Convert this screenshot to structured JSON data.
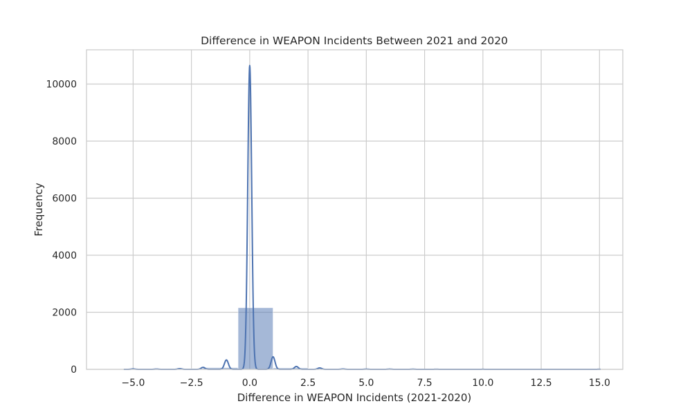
{
  "chart_data": {
    "type": "bar",
    "title": "Difference in WEAPON Incidents Between 2021 and 2020",
    "xlabel": "Difference in WEAPON Incidents (2021-2020)",
    "ylabel": "Frequency",
    "xlim": [
      -7.0,
      16.0
    ],
    "ylim": [
      0,
      11200
    ],
    "x_ticks": [
      -5.0,
      -2.5,
      0.0,
      2.5,
      5.0,
      7.5,
      10.0,
      12.5,
      15.0
    ],
    "x_tick_labels": [
      "−5.0",
      "−2.5",
      "0.0",
      "2.5",
      "5.0",
      "7.5",
      "10.0",
      "12.5",
      "15.0"
    ],
    "y_ticks": [
      0,
      2000,
      4000,
      6000,
      8000,
      10000
    ],
    "y_tick_labels": [
      "0",
      "2000",
      "4000",
      "6000",
      "8000",
      "10000"
    ],
    "grid": true,
    "colors": {
      "bar_fill": "#4c72b0",
      "bar_opacity": 0.5,
      "kde_line": "#4c72b0",
      "grid": "#cccccc",
      "frame": "#cccccc"
    },
    "histogram_bins": [
      {
        "x0": -5.0,
        "x1": -3.5,
        "count": 8
      },
      {
        "x0": -3.5,
        "x1": -2.0,
        "count": 25
      },
      {
        "x0": -2.0,
        "x1": -0.5,
        "count": 60
      },
      {
        "x0": -0.5,
        "x1": 1.0,
        "count": 2160
      },
      {
        "x0": 1.0,
        "x1": 2.5,
        "count": 50
      },
      {
        "x0": 2.5,
        "x1": 4.0,
        "count": 20
      },
      {
        "x0": 4.0,
        "x1": 5.5,
        "count": 6
      },
      {
        "x0": 5.5,
        "x1": 7.0,
        "count": 3
      },
      {
        "x0": 7.0,
        "x1": 8.5,
        "count": 2
      },
      {
        "x0": 8.5,
        "x1": 10.0,
        "count": 1
      },
      {
        "x0": 10.0,
        "x1": 11.5,
        "count": 0
      },
      {
        "x0": 11.5,
        "x1": 13.0,
        "count": 0
      },
      {
        "x0": 13.0,
        "x1": 14.5,
        "count": 0
      },
      {
        "x0": 14.5,
        "x1": 16.0,
        "count": 1
      }
    ],
    "kde_peaks": [
      {
        "x": -5.0,
        "height": 15
      },
      {
        "x": -4.0,
        "height": 10
      },
      {
        "x": -3.0,
        "height": 25
      },
      {
        "x": -2.0,
        "height": 70
      },
      {
        "x": -1.0,
        "height": 330
      },
      {
        "x": 0.0,
        "height": 10650
      },
      {
        "x": 1.0,
        "height": 440
      },
      {
        "x": 2.0,
        "height": 100
      },
      {
        "x": 3.0,
        "height": 50
      },
      {
        "x": 4.0,
        "height": 12
      },
      {
        "x": 5.0,
        "height": 8
      },
      {
        "x": 6.0,
        "height": 8
      },
      {
        "x": 7.0,
        "height": 6
      },
      {
        "x": 8.0,
        "height": 3
      },
      {
        "x": 10.0,
        "height": 2
      },
      {
        "x": 15.0,
        "height": 3
      }
    ]
  }
}
